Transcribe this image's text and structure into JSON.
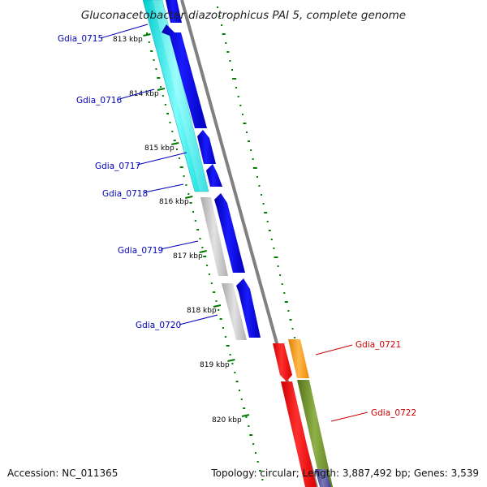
{
  "map": {
    "title": "Gluconacetobacter diazotrophicus PAI 5, complete genome",
    "accession_text": "Accession: NC_011365",
    "summary_text": "Topology: circular; Length: 3,887,492 bp; Genes: 3,539",
    "scale_labels": [
      "813 kbp",
      "814 kbp",
      "815 kbp",
      "816 kbp",
      "817 kbp",
      "818 kbp",
      "819 kbp",
      "820 kbp"
    ],
    "genes": [
      {
        "id": "Gdia_0715",
        "color": "#0000bb"
      },
      {
        "id": "Gdia_0716",
        "color": "#0000bb"
      },
      {
        "id": "Gdia_0717",
        "color": "#0000bb"
      },
      {
        "id": "Gdia_0718",
        "color": "#0000bb"
      },
      {
        "id": "Gdia_0719",
        "color": "#0000bb"
      },
      {
        "id": "Gdia_0720",
        "color": "#0000bb"
      },
      {
        "id": "Gdia_0721",
        "color": "#cc0000"
      },
      {
        "id": "Gdia_0722",
        "color": "#cc0000"
      }
    ],
    "colors": {
      "cds_forward": "#0000ee",
      "cds_reverse": "#ee0000",
      "feature_cyan": "#00eeee",
      "feature_grey": "#bbbbbb",
      "feature_orange": "#ff9900",
      "feature_olive": "#6b8e23",
      "backbone": "#888888",
      "gc_ticks": "#008000",
      "label_blue": "#0000bb",
      "label_red": "#cc0000"
    }
  }
}
